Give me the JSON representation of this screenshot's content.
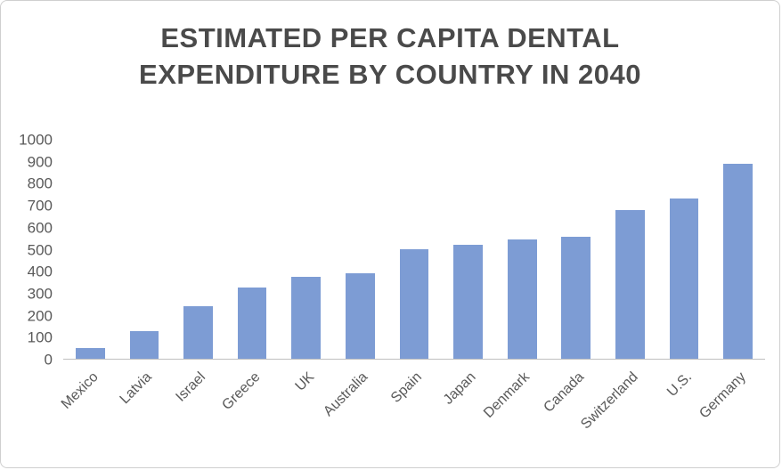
{
  "chart_data": {
    "type": "bar",
    "title": "ESTIMATED PER CAPITA DENTAL EXPENDITURE BY COUNTRY IN 2040",
    "categories": [
      "Mexico",
      "Latvia",
      "Israel",
      "Greece",
      "UK",
      "Australia",
      "Spain",
      "Japan",
      "Denmark",
      "Canada",
      "Switzerland",
      "U.S.",
      "Germany"
    ],
    "values": [
      50,
      125,
      240,
      325,
      375,
      390,
      500,
      520,
      545,
      555,
      680,
      730,
      890
    ],
    "xlabel": "",
    "ylabel": "",
    "ylim": [
      0,
      1000
    ],
    "yticks": [
      0,
      100,
      200,
      300,
      400,
      500,
      600,
      700,
      800,
      900,
      1000
    ],
    "grid": false,
    "legend": false,
    "bar_color": "#7d9cd4",
    "axis_line_color": "#bfbfbf",
    "label_color": "#595959",
    "title_color": "#4a4a4a"
  }
}
